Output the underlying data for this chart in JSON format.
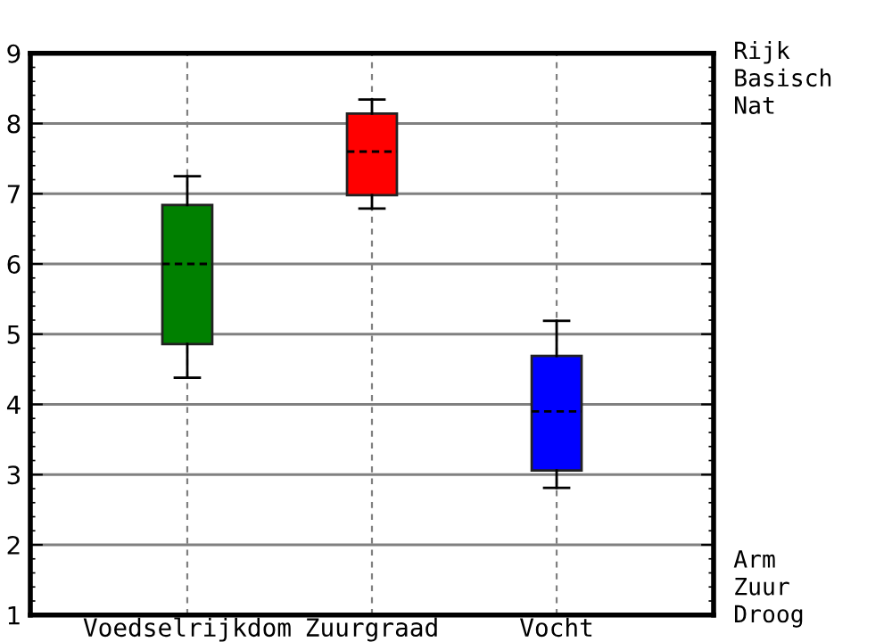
{
  "chart_data": {
    "type": "box",
    "categories": [
      "Voedselrijkdom",
      "Zuurgraad",
      "Vocht"
    ],
    "boxes": [
      {
        "low": 4.38,
        "q1": 4.86,
        "median": 6.0,
        "q3": 6.84,
        "high": 7.25
      },
      {
        "low": 6.79,
        "q1": 6.98,
        "median": 7.6,
        "q3": 8.14,
        "high": 8.34
      },
      {
        "low": 2.81,
        "q1": 3.06,
        "median": 3.9,
        "q3": 4.69,
        "high": 5.19
      }
    ],
    "colors": [
      "#008000",
      "#ff0000",
      "#0000ff"
    ],
    "ylim": [
      1,
      9
    ],
    "yticks": [
      1,
      2,
      3,
      4,
      5,
      6,
      7,
      8,
      9
    ],
    "grid": true,
    "annotations": [
      "Rijk\nBasisch\nNat",
      "Arm\nZuur\nDroog"
    ]
  }
}
